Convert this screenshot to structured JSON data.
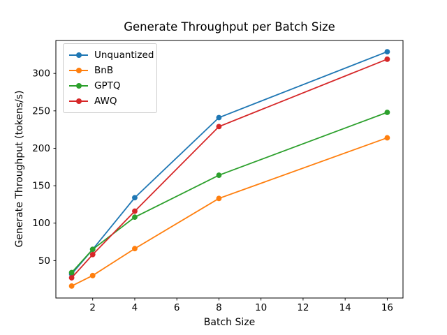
{
  "chart_data": {
    "type": "line",
    "title": "Generate Throughput per Batch Size",
    "xlabel": "Batch Size",
    "ylabel": "Generate Throughput (tokens/s)",
    "x": [
      1,
      2,
      4,
      8,
      16
    ],
    "series": [
      {
        "name": "Unquantized",
        "color": "#1f77b4",
        "values": [
          32,
          65,
          134,
          241,
          329
        ]
      },
      {
        "name": "BnB",
        "color": "#ff7f0e",
        "values": [
          16,
          30,
          66,
          133,
          214
        ]
      },
      {
        "name": "GPTQ",
        "color": "#2ca02c",
        "values": [
          34,
          65,
          108,
          164,
          248
        ]
      },
      {
        "name": "AWQ",
        "color": "#d62728",
        "values": [
          27,
          58,
          116,
          229,
          319
        ]
      }
    ],
    "xticks": [
      2,
      4,
      6,
      8,
      10,
      12,
      14,
      16
    ],
    "yticks": [
      50,
      100,
      150,
      200,
      250,
      300
    ],
    "xlim": [
      0.25,
      16.75
    ],
    "ylim": [
      0,
      344
    ],
    "grid": false,
    "legend_position": "upper left",
    "marker": "circle",
    "axis_color": "#000000",
    "background_color": "#ffffff"
  }
}
